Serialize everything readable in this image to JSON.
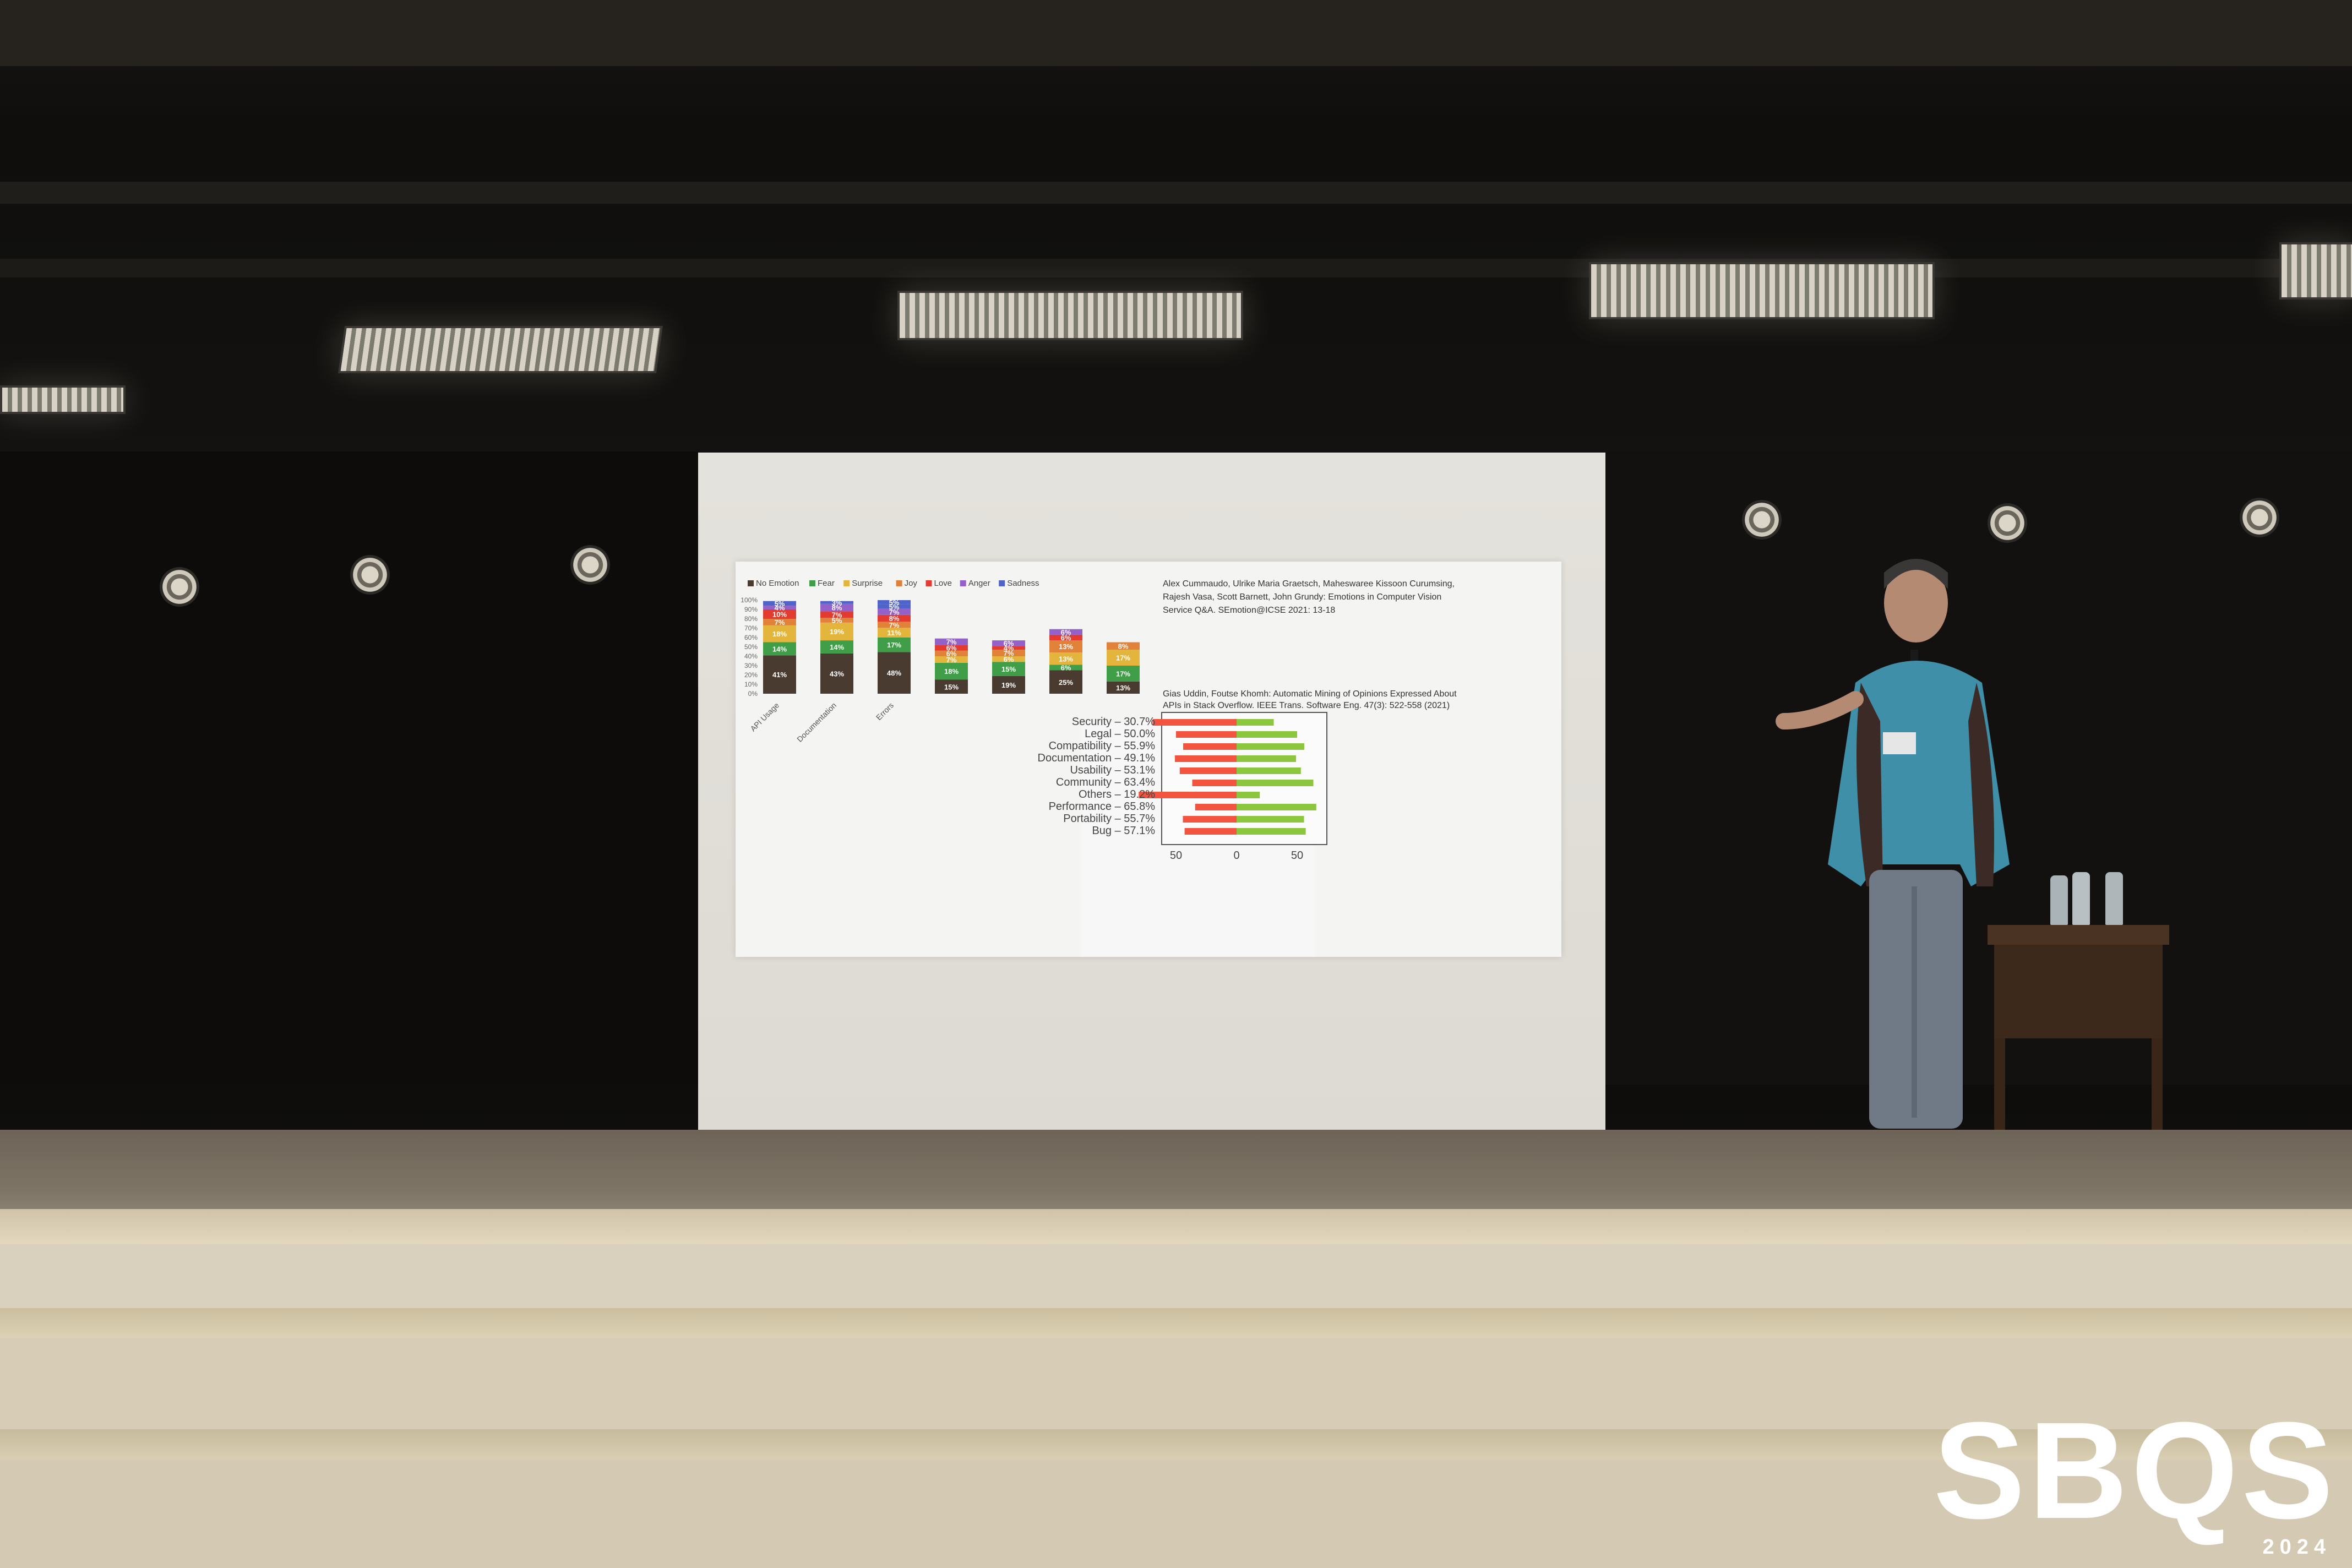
{
  "stacked_chart": {
    "legend": [
      "No Emotion",
      "Fear",
      "Surprise",
      "Joy",
      "Love",
      "Anger",
      "Sadness"
    ],
    "legend_colors": [
      "#4a3b30",
      "#3f9e47",
      "#e4b53d",
      "#e2813a",
      "#e33b2f",
      "#9361c7",
      "#4f63c9"
    ],
    "y_ticks": [
      "100%",
      "90%",
      "80%",
      "70%",
      "60%",
      "50%",
      "40%",
      "30%",
      "20%",
      "10%",
      "0%"
    ],
    "categories": [
      "API Usage",
      "Documentation",
      "Errors"
    ],
    "bar_labels": [
      [
        "41%",
        "14%",
        "18%",
        "7%",
        "10%",
        "4%",
        "5%"
      ],
      [
        "43%",
        "14%",
        "19%",
        "5%",
        "7%",
        "8%",
        "3%"
      ],
      [
        "48%",
        "17%",
        "11%",
        "7%",
        "8%",
        "7%",
        "5%",
        "5%"
      ],
      [
        "15%",
        "18%",
        "7%",
        "6%",
        "6%",
        "7%"
      ],
      [
        "19%",
        "15%",
        "6%",
        "7%",
        "4%",
        "6%"
      ],
      [
        "25%",
        "6%",
        "13%",
        "13%",
        "6%",
        "6%"
      ],
      [
        "13%",
        "17%",
        "17%",
        "8%"
      ]
    ]
  },
  "citations": {
    "first": "Alex Cummaudo, Ulrike Maria Graetsch, Maheswaree Kissoon Curumsing, Rajesh Vasa, Scott Barnett, John Grundy: Emotions in Computer Vision Service Q&A. SEmotion@ICSE 2021: 13-18",
    "second": "Gias Uddin, Foutse Khomh: Automatic Mining of Opinions Expressed About APIs in Stack Overflow. IEEE Trans. Software Eng. 47(3): 522-558 (2021)"
  },
  "diverging_chart": {
    "labels": [
      "Security – 30.7%",
      "Legal – 50.0%",
      "Compatibility – 55.9%",
      "Documentation – 49.1%",
      "Usability – 53.1%",
      "Community – 63.4%",
      "Others – 19.2%",
      "Performance – 65.8%",
      "Portability – 55.7%",
      "Bug – 57.1%"
    ],
    "x_ticks": [
      "50",
      "0",
      "50"
    ],
    "negative_color": "#f2543f",
    "positive_color": "#8cc63f"
  },
  "logo": {
    "name": "SBQS",
    "year": "2024"
  }
}
